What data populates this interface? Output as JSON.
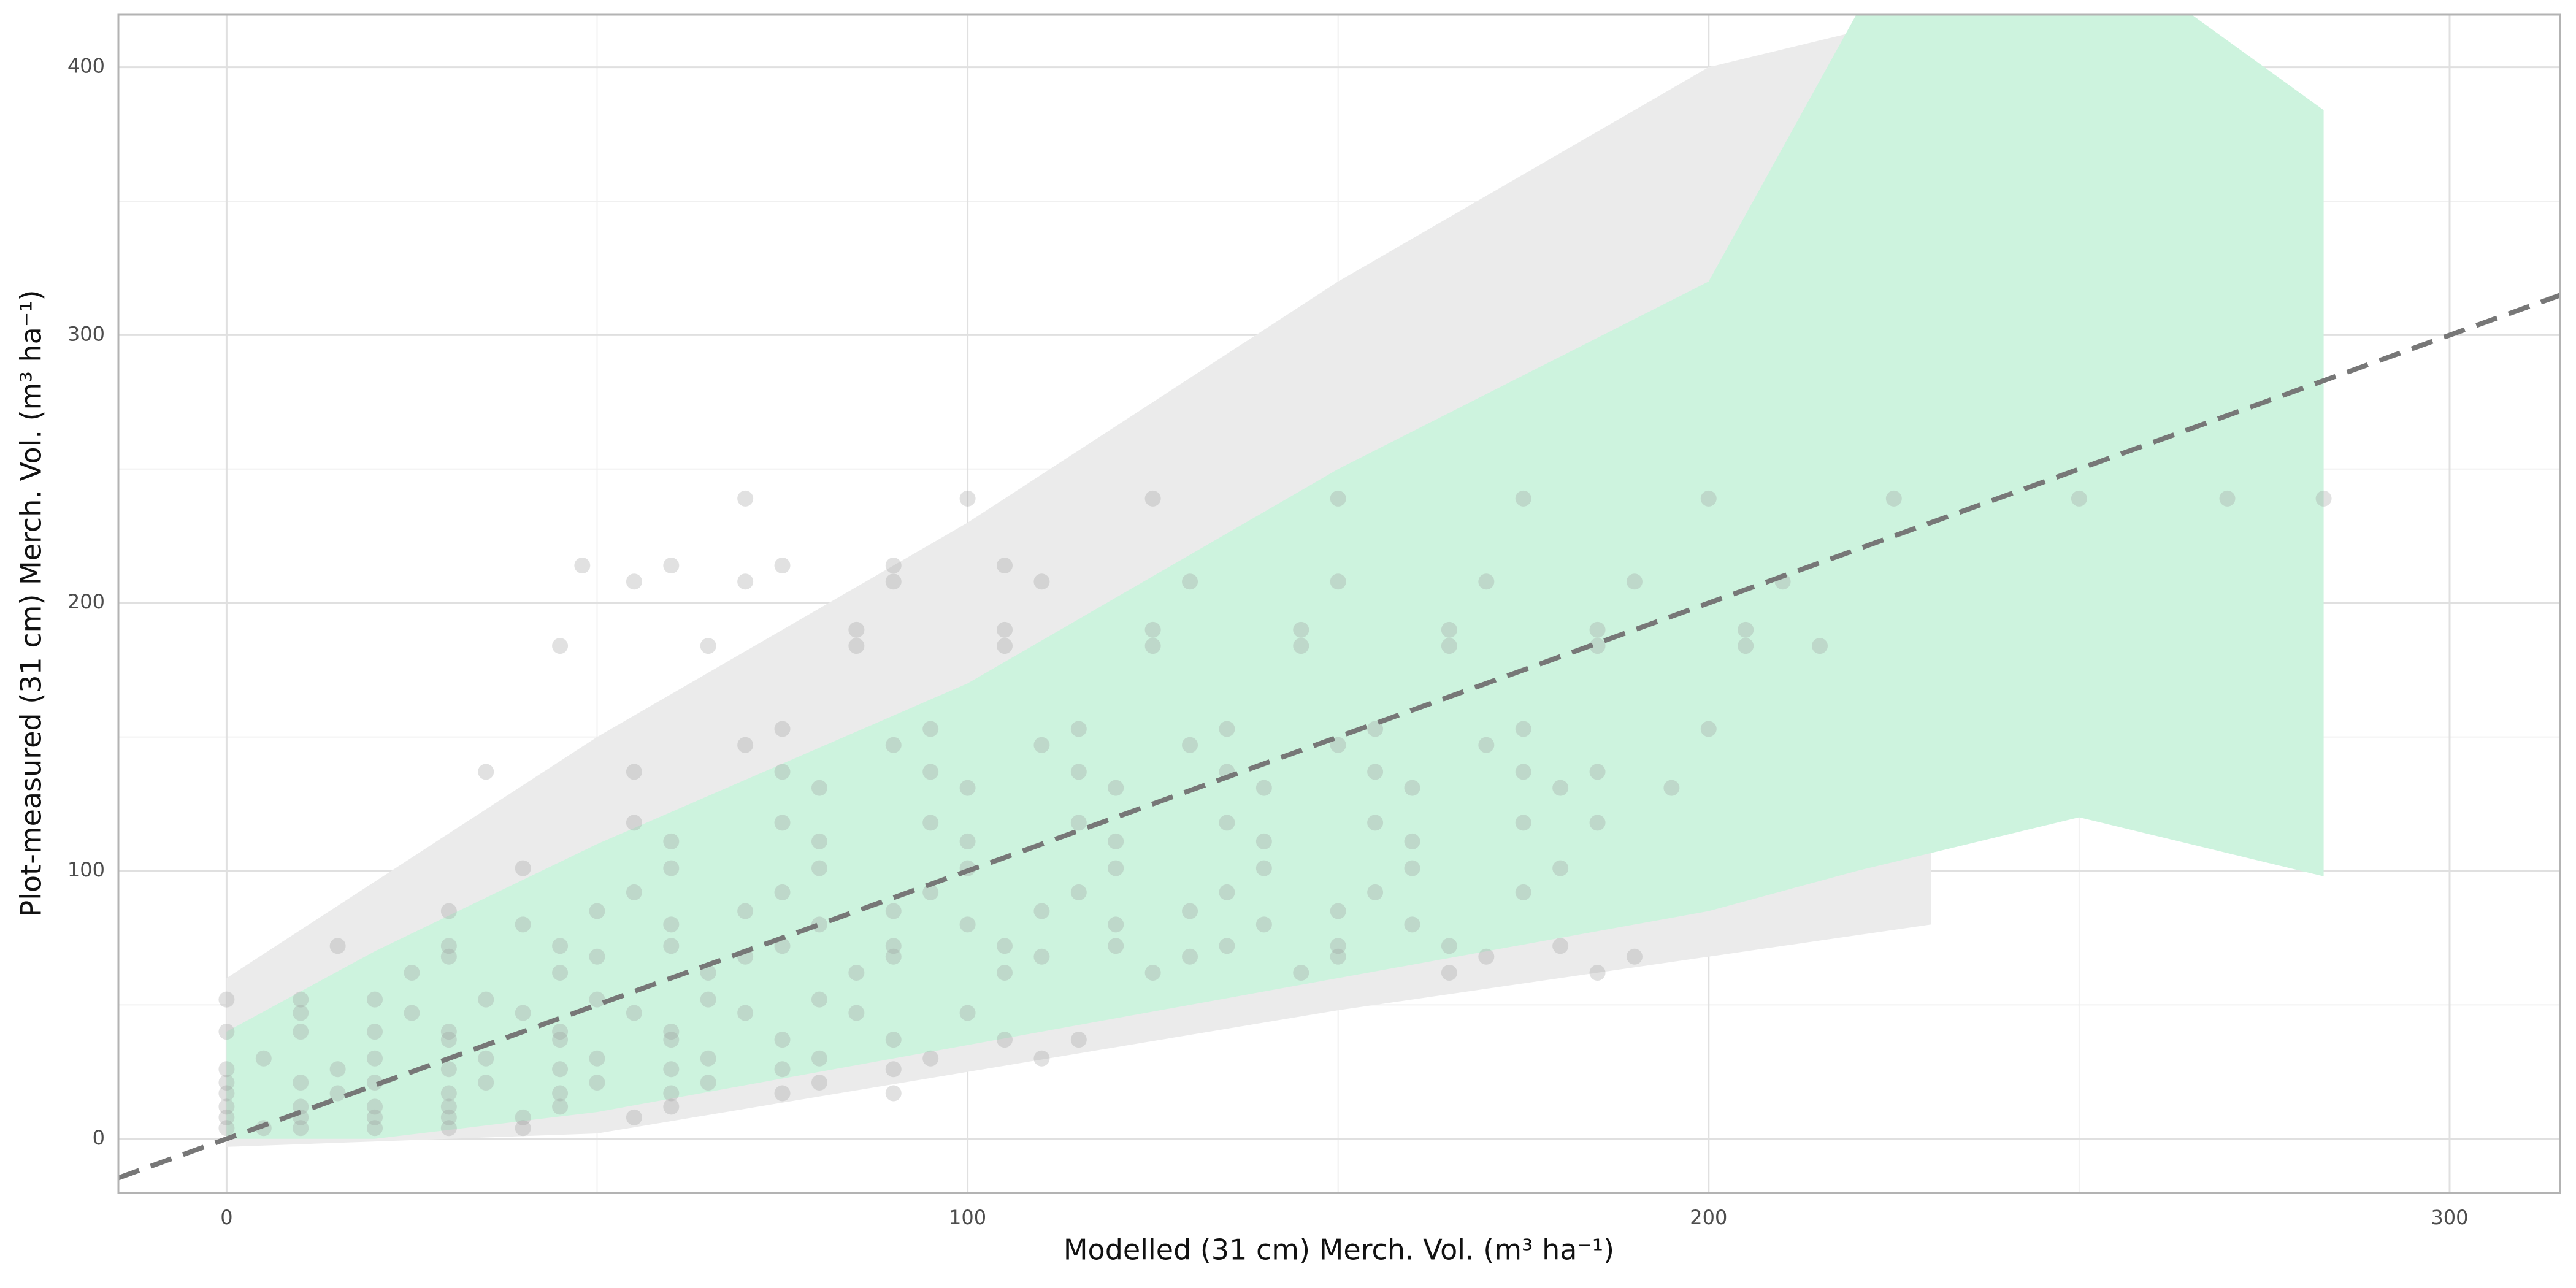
{
  "chart_data": {
    "type": "scatter",
    "xlabel": "Modelled (31 cm) Merch. Vol.  (m³ ha⁻¹)",
    "ylabel": "Plot-measured (31 cm) Merch. Vol.  (m³ ha⁻¹)",
    "xlim": [
      -14.6,
      314.9
    ],
    "ylim": [
      -20.2,
      419.6
    ],
    "xticks": [
      0,
      100,
      200,
      300
    ],
    "yticks": [
      0,
      100,
      200,
      300,
      400
    ],
    "minor_xticks": [
      50,
      150,
      250
    ],
    "minor_yticks": [
      50,
      150,
      250,
      350
    ],
    "grid": true,
    "series": [
      {
        "type": "area",
        "color": "#ebebeb",
        "x": [
          0,
          50,
          100,
          150,
          200,
          230
        ],
        "upper": [
          60,
          150,
          230,
          320,
          400,
          420
        ],
        "lower": [
          -3,
          2,
          25,
          48,
          68,
          80
        ]
      },
      {
        "type": "area",
        "color": "#cdf3de",
        "x": [
          0,
          20,
          50,
          100,
          150,
          200,
          220,
          250,
          265,
          283
        ],
        "upper": [
          40,
          70,
          110,
          170,
          250,
          320,
          420,
          420,
          420,
          384
        ],
        "lower": [
          0,
          0,
          10,
          35,
          60,
          85,
          100,
          120,
          110,
          98
        ]
      },
      {
        "type": "points",
        "color": "#9a9a9a",
        "x": [
          70,
          100,
          125,
          150,
          175,
          200,
          225,
          250,
          270,
          283,
          48,
          60,
          75,
          90,
          105,
          55,
          70,
          90,
          110,
          130,
          150,
          170,
          190,
          210,
          85,
          105,
          125,
          145,
          165,
          185,
          205,
          45,
          65,
          85,
          105,
          125,
          145,
          165,
          185,
          205,
          215,
          75,
          95,
          115,
          135,
          155,
          175,
          200,
          70,
          90,
          110,
          130,
          150,
          170,
          35,
          55,
          75,
          95,
          115,
          135,
          155,
          175,
          185,
          80,
          100,
          120,
          140,
          160,
          180,
          195,
          55,
          75,
          95,
          115,
          135,
          155,
          175,
          185,
          60,
          80,
          100,
          120,
          140,
          160,
          40,
          60,
          80,
          100,
          120,
          140,
          160,
          180,
          55,
          75,
          95,
          115,
          135,
          155,
          175,
          30,
          50,
          70,
          90,
          110,
          130,
          150,
          40,
          60,
          80,
          100,
          120,
          140,
          160,
          15,
          30,
          45,
          60,
          75,
          90,
          105,
          120,
          135,
          150,
          165,
          180,
          30,
          50,
          70,
          90,
          110,
          130,
          150,
          170,
          190,
          25,
          45,
          65,
          85,
          105,
          125,
          145,
          165,
          185,
          0,
          10,
          20,
          35,
          50,
          65,
          80,
          10,
          25,
          40,
          55,
          70,
          85,
          100,
          0,
          10,
          20,
          30,
          45,
          60,
          30,
          45,
          60,
          75,
          90,
          105,
          115,
          5,
          20,
          35,
          50,
          65,
          80,
          95,
          110,
          0,
          15,
          30,
          45,
          60,
          75,
          90,
          0,
          10,
          20,
          35,
          50,
          65,
          80,
          0,
          15,
          30,
          45,
          60,
          75,
          90,
          0,
          10,
          20,
          30,
          45,
          60,
          0,
          10,
          20,
          30,
          40,
          55,
          0,
          5,
          10,
          20,
          30,
          40
        ],
        "values": [
          239,
          239,
          239,
          239,
          239,
          239,
          239,
          239,
          239,
          239,
          214,
          214,
          214,
          214,
          214,
          208,
          208,
          208,
          208,
          208,
          208,
          208,
          208,
          208,
          190,
          190,
          190,
          190,
          190,
          190,
          190,
          184,
          184,
          184,
          184,
          184,
          184,
          184,
          184,
          184,
          184,
          153,
          153,
          153,
          153,
          153,
          153,
          153,
          147,
          147,
          147,
          147,
          147,
          147,
          137,
          137,
          137,
          137,
          137,
          137,
          137,
          137,
          137,
          131,
          131,
          131,
          131,
          131,
          131,
          131,
          118,
          118,
          118,
          118,
          118,
          118,
          118,
          118,
          111,
          111,
          111,
          111,
          111,
          111,
          101,
          101,
          101,
          101,
          101,
          101,
          101,
          101,
          92,
          92,
          92,
          92,
          92,
          92,
          92,
          85,
          85,
          85,
          85,
          85,
          85,
          85,
          80,
          80,
          80,
          80,
          80,
          80,
          80,
          72,
          72,
          72,
          72,
          72,
          72,
          72,
          72,
          72,
          72,
          72,
          72,
          68,
          68,
          68,
          68,
          68,
          68,
          68,
          68,
          68,
          62,
          62,
          62,
          62,
          62,
          62,
          62,
          62,
          62,
          52,
          52,
          52,
          52,
          52,
          52,
          52,
          47,
          47,
          47,
          47,
          47,
          47,
          47,
          40,
          40,
          40,
          40,
          40,
          40,
          37,
          37,
          37,
          37,
          37,
          37,
          37,
          30,
          30,
          30,
          30,
          30,
          30,
          30,
          30,
          26,
          26,
          26,
          26,
          26,
          26,
          26,
          21,
          21,
          21,
          21,
          21,
          21,
          21,
          17,
          17,
          17,
          17,
          17,
          17,
          17,
          12,
          12,
          12,
          12,
          12,
          12,
          8,
          8,
          8,
          8,
          8,
          8,
          4,
          4,
          4,
          4,
          4,
          4
        ]
      },
      {
        "type": "line",
        "color": "#777777",
        "dashed": true,
        "x": [
          -14.6,
          314.9
        ],
        "values": [
          -14.6,
          314.9
        ]
      }
    ]
  }
}
